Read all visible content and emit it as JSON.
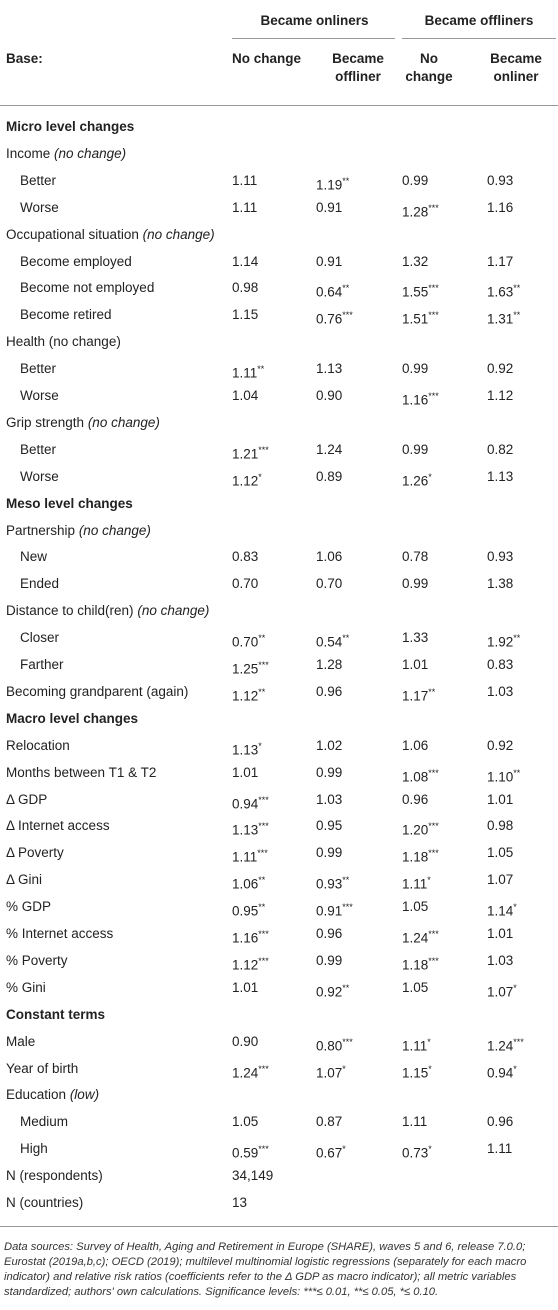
{
  "header": {
    "groups": [
      "Became onliners",
      "Became offliners"
    ],
    "base": "Base:",
    "columns": [
      "No change",
      "Became offliner",
      "No change",
      "Became onliner"
    ]
  },
  "rows": [
    {
      "kind": "section",
      "label": "Micro level changes"
    },
    {
      "kind": "group",
      "label": "Income",
      "note": "(no change)"
    },
    {
      "kind": "item",
      "label": "Better",
      "values": [
        "1.11",
        "1.19**",
        "0.99",
        "0.93"
      ]
    },
    {
      "kind": "item",
      "label": "Worse",
      "values": [
        "1.11",
        "0.91",
        "1.28***",
        "1.16"
      ]
    },
    {
      "kind": "group",
      "label": "Occupational situation",
      "note": "(no change)"
    },
    {
      "kind": "item",
      "label": "Become employed",
      "values": [
        "1.14",
        "0.91",
        "1.32",
        "1.17"
      ]
    },
    {
      "kind": "item",
      "label": "Become not employed",
      "values": [
        "0.98",
        "0.64**",
        "1.55***",
        "1.63**"
      ]
    },
    {
      "kind": "item",
      "label": "Become retired",
      "values": [
        "1.15",
        "0.76***",
        "1.51***",
        "1.31**"
      ]
    },
    {
      "kind": "group",
      "label": "Health (no change)"
    },
    {
      "kind": "item",
      "label": "Better",
      "values": [
        "1.11**",
        "1.13",
        "0.99",
        "0.92"
      ]
    },
    {
      "kind": "item",
      "label": "Worse",
      "values": [
        "1.04",
        "0.90",
        "1.16***",
        "1.12"
      ]
    },
    {
      "kind": "group",
      "label": "Grip strength",
      "note": "(no change)"
    },
    {
      "kind": "item",
      "label": "Better",
      "values": [
        "1.21***",
        "1.24",
        "0.99",
        "0.82"
      ]
    },
    {
      "kind": "item",
      "label": "Worse",
      "values": [
        "1.12*",
        "0.89",
        "1.26*",
        "1.13"
      ]
    },
    {
      "kind": "section",
      "label": "Meso level changes"
    },
    {
      "kind": "group",
      "label": "Partnership",
      "note": "(no change)"
    },
    {
      "kind": "item",
      "label": "New",
      "values": [
        "0.83",
        "1.06",
        "0.78",
        "0.93"
      ]
    },
    {
      "kind": "item",
      "label": "Ended",
      "values": [
        "0.70",
        "0.70",
        "0.99",
        "1.38"
      ]
    },
    {
      "kind": "group",
      "label": "Distance to child(ren)",
      "note": "(no change)"
    },
    {
      "kind": "item",
      "label": "Closer",
      "values": [
        "0.70**",
        "0.54**",
        "1.33",
        "1.92**"
      ]
    },
    {
      "kind": "item",
      "label": "Farther",
      "values": [
        "1.25***",
        "1.28",
        "1.01",
        "0.83"
      ]
    },
    {
      "kind": "group",
      "label": "Becoming grandparent (again)",
      "values": [
        "1.12**",
        "0.96",
        "1.17**",
        "1.03"
      ]
    },
    {
      "kind": "section",
      "label": "Macro level changes"
    },
    {
      "kind": "group",
      "label": "Relocation",
      "values": [
        "1.13*",
        "1.02",
        "1.06",
        "0.92"
      ]
    },
    {
      "kind": "group",
      "label": "Months between T1 & T2",
      "values": [
        "1.01",
        "0.99",
        "1.08***",
        "1.10**"
      ]
    },
    {
      "kind": "group",
      "label": "Δ GDP",
      "values": [
        "0.94***",
        "1.03",
        "0.96",
        "1.01"
      ]
    },
    {
      "kind": "group",
      "label": "Δ Internet access",
      "values": [
        "1.13***",
        "0.95",
        "1.20***",
        "0.98"
      ]
    },
    {
      "kind": "group",
      "label": "Δ Poverty",
      "values": [
        "1.11***",
        "0.99",
        "1.18***",
        "1.05"
      ]
    },
    {
      "kind": "group",
      "label": "Δ Gini",
      "values": [
        "1.06**",
        "0.93**",
        "1.11*",
        "1.07"
      ]
    },
    {
      "kind": "group",
      "label": "% GDP",
      "values": [
        "0.95**",
        "0.91***",
        "1.05",
        "1.14*"
      ]
    },
    {
      "kind": "group",
      "label": "% Internet access",
      "values": [
        "1.16***",
        "0.96",
        "1.24***",
        "1.01"
      ]
    },
    {
      "kind": "group",
      "label": "% Poverty",
      "values": [
        "1.12***",
        "0.99",
        "1.18***",
        "1.03"
      ]
    },
    {
      "kind": "group",
      "label": "% Gini",
      "values": [
        "1.01",
        "0.92**",
        "1.05",
        "1.07*"
      ]
    },
    {
      "kind": "section",
      "label": "Constant terms"
    },
    {
      "kind": "group",
      "label": "Male",
      "values": [
        "0.90",
        "0.80***",
        "1.11*",
        "1.24***"
      ]
    },
    {
      "kind": "group",
      "label": "Year of birth",
      "values": [
        "1.24***",
        "1.07*",
        "1.15*",
        "0.94*"
      ]
    },
    {
      "kind": "group",
      "label": "Education",
      "note": "(low)"
    },
    {
      "kind": "item",
      "label": "Medium",
      "values": [
        "1.05",
        "0.87",
        "1.11",
        "0.96"
      ]
    },
    {
      "kind": "item",
      "label": "High",
      "values": [
        "0.59***",
        "0.67*",
        "0.73*",
        "1.11"
      ]
    },
    {
      "kind": "group",
      "label": "N (respondents)",
      "values": [
        "34,149"
      ]
    },
    {
      "kind": "group",
      "label": "N (countries)",
      "values": [
        "13"
      ]
    }
  ],
  "footnote": "Data sources: Survey of Health, Aging and Retirement in Europe (SHARE), waves 5 and 6, release 7.0.0; Eurostat (2019a,b,c); OECD (2019); multilevel multinomial logistic regressions (separately for each macro indicator) and relative risk ratios (coefficients refer to the Δ GDP as macro indicator); all metric variables standardized; authors' own calculations. Significance levels: ***≤ 0.01, **≤ 0.05, *≤ 0.10."
}
